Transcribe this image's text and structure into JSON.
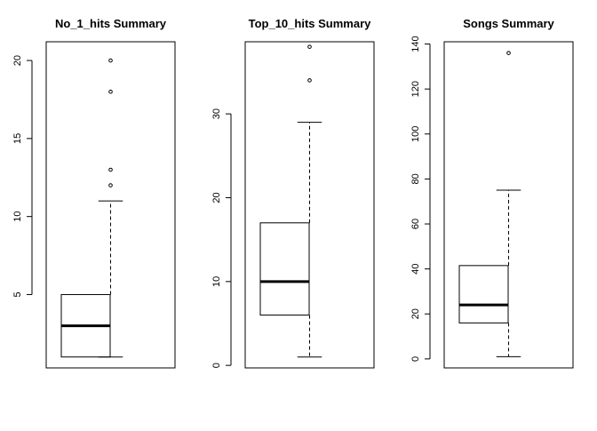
{
  "chart_data": [
    {
      "type": "boxplot",
      "title": "No_1_hits Summary",
      "ylim": [
        0.3,
        21.2
      ],
      "yticks": [
        5,
        10,
        15,
        20
      ],
      "stats": {
        "whisker_low": 1,
        "q1": 1,
        "median": 3,
        "q3": 5,
        "whisker_high": 11
      },
      "outliers": [
        12,
        13,
        18,
        20
      ]
    },
    {
      "type": "boxplot",
      "title": "Top_10_hits Summary",
      "ylim": [
        -0.3,
        38.6
      ],
      "yticks": [
        0,
        10,
        20,
        30
      ],
      "stats": {
        "whisker_low": 1,
        "q1": 6,
        "median": 10,
        "q3": 17,
        "whisker_high": 29
      },
      "outliers": [
        34,
        38
      ]
    },
    {
      "type": "boxplot",
      "title": "Songs Summary",
      "ylim": [
        -4,
        141
      ],
      "yticks": [
        0,
        20,
        40,
        60,
        80,
        100,
        120,
        140
      ],
      "stats": {
        "whisker_low": 1,
        "q1": 16,
        "median": 24,
        "q3": 41.5,
        "whisker_high": 75
      },
      "outliers": [
        136
      ]
    }
  ]
}
